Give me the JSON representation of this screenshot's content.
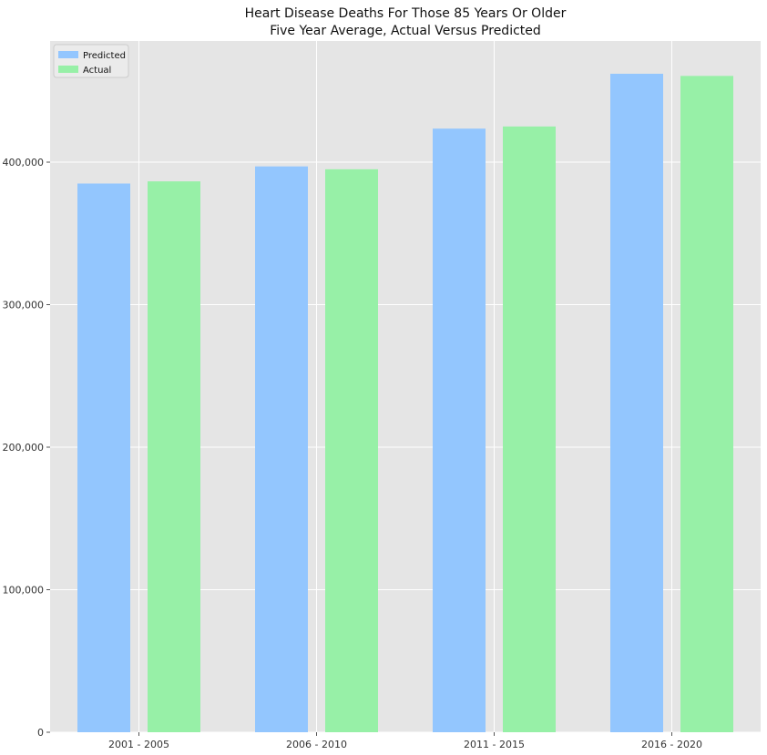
{
  "chart_data": {
    "type": "bar",
    "title": [
      "Heart Disease Deaths For Those 85 Years Or Older",
      "Five Year Average, Actual Versus Predicted"
    ],
    "xlabel": "",
    "ylabel": "",
    "categories": [
      "2001 - 2005",
      "2006 - 2010",
      "2011 - 2015",
      "2016 - 2020"
    ],
    "series": [
      {
        "name": "Predicted",
        "color": "#93c6fe",
        "values": [
          385000,
          397000,
          423500,
          462000
        ]
      },
      {
        "name": "Actual",
        "color": "#97f0a7",
        "values": [
          386500,
          395000,
          425000,
          460500
        ]
      }
    ],
    "ylim": [
      0,
      485000
    ],
    "yticks": [
      0,
      100000,
      200000,
      300000,
      400000
    ],
    "ytick_labels": [
      "0",
      "100,000",
      "200,000",
      "300,000",
      "400,000"
    ],
    "grid": true,
    "legend": "top-left",
    "background": "#e5e5e5"
  }
}
